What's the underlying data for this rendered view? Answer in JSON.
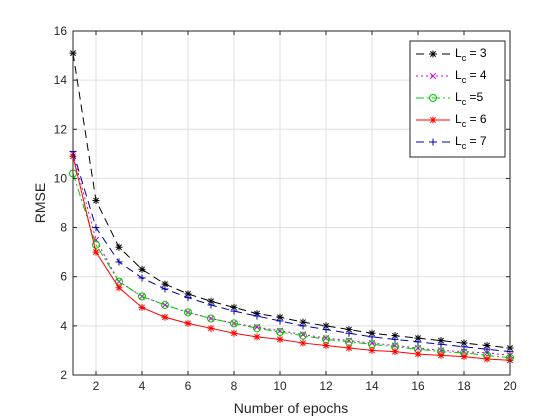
{
  "chart_data": {
    "type": "line",
    "title": "",
    "xlabel": "Number of epochs",
    "ylabel": "RMSE",
    "xlim": [
      1,
      20
    ],
    "ylim": [
      2,
      16
    ],
    "x_ticks": [
      2,
      4,
      6,
      8,
      10,
      12,
      14,
      16,
      18,
      20
    ],
    "y_ticks": [
      2,
      4,
      6,
      8,
      10,
      12,
      14,
      16
    ],
    "grid": true,
    "legend_position": "top-right",
    "x": [
      1,
      2,
      3,
      4,
      5,
      6,
      7,
      8,
      9,
      10,
      11,
      12,
      13,
      14,
      15,
      16,
      17,
      18,
      19,
      20
    ],
    "series": [
      {
        "name": "L_c = 3",
        "legend_main": "L",
        "legend_sub": "c",
        "legend_suffix": " = 3",
        "color": "#000000",
        "dash": "8,5",
        "marker": "asterisk",
        "values": [
          15.1,
          9.1,
          7.2,
          6.3,
          5.7,
          5.3,
          5.0,
          4.75,
          4.5,
          4.35,
          4.15,
          4.0,
          3.85,
          3.7,
          3.6,
          3.5,
          3.4,
          3.3,
          3.2,
          3.1
        ]
      },
      {
        "name": "L_c = 4",
        "legend_main": "L",
        "legend_sub": "c",
        "legend_suffix": " = 4",
        "color": "#cc00cc",
        "dash": "2,3",
        "marker": "x",
        "values": [
          11.0,
          7.5,
          5.8,
          5.2,
          4.85,
          4.55,
          4.3,
          4.1,
          3.95,
          3.8,
          3.65,
          3.5,
          3.4,
          3.3,
          3.2,
          3.1,
          3.0,
          2.95,
          2.9,
          2.8
        ]
      },
      {
        "name": "L_c =5",
        "legend_main": "L",
        "legend_sub": "c",
        "legend_suffix": " =5",
        "color": "#00cc00",
        "dash": "8,3,2,3",
        "marker": "circle",
        "values": [
          10.2,
          7.3,
          5.8,
          5.2,
          4.85,
          4.55,
          4.3,
          4.1,
          3.9,
          3.75,
          3.6,
          3.45,
          3.35,
          3.25,
          3.15,
          3.05,
          2.95,
          2.9,
          2.8,
          2.7
        ]
      },
      {
        "name": "L_c = 6",
        "legend_main": "L",
        "legend_sub": "c",
        "legend_suffix": " = 6",
        "color": "#ff0000",
        "dash": "",
        "marker": "asterisk",
        "values": [
          10.9,
          7.0,
          5.55,
          4.75,
          4.35,
          4.1,
          3.9,
          3.7,
          3.55,
          3.45,
          3.3,
          3.2,
          3.1,
          3.0,
          2.95,
          2.85,
          2.8,
          2.75,
          2.65,
          2.6
        ]
      },
      {
        "name": "L_c = 7",
        "legend_main": "L",
        "legend_sub": "c",
        "legend_suffix": " = 7",
        "color": "#0000aa",
        "dash": "8,5",
        "marker": "plus",
        "values": [
          11.1,
          8.0,
          6.6,
          5.95,
          5.5,
          5.15,
          4.85,
          4.6,
          4.4,
          4.2,
          4.0,
          3.85,
          3.7,
          3.55,
          3.45,
          3.35,
          3.25,
          3.15,
          3.05,
          2.95
        ]
      }
    ]
  }
}
